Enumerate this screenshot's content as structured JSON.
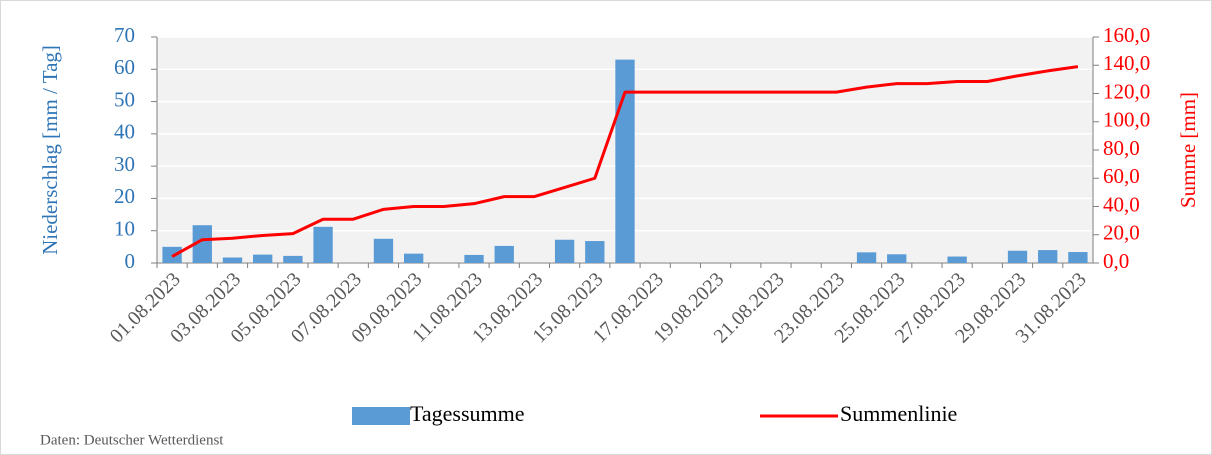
{
  "chart_data": {
    "type": "bar",
    "categories": [
      "01.08.2023",
      null,
      "03.08.2023",
      null,
      "05.08.2023",
      null,
      "07.08.2023",
      null,
      "09.08.2023",
      null,
      "11.08.2023",
      null,
      "13.08.2023",
      null,
      "15.08.2023",
      null,
      "17.08.2023",
      null,
      "19.08.2023",
      null,
      "21.08.2023",
      null,
      "23.08.2023",
      null,
      "25.08.2023",
      null,
      "27.08.2023",
      null,
      "29.08.2023",
      null,
      "31.08.2023"
    ],
    "series": [
      {
        "name": "Tagessumme",
        "type": "bar",
        "color": "#5b9bd5",
        "values": [
          5.0,
          11.7,
          1.7,
          2.6,
          2.2,
          11.2,
          0,
          7.5,
          2.9,
          0,
          2.5,
          5.3,
          0,
          7.2,
          6.8,
          63,
          0,
          0,
          0,
          0,
          0,
          0,
          0,
          3.3,
          2.7,
          0,
          2.0,
          0,
          3.8,
          4.0,
          3.4
        ]
      },
      {
        "name": "Summenlinie",
        "type": "line",
        "axis": "y2",
        "color": "#ff0000",
        "values": [
          4.6,
          16.5,
          17.5,
          19.5,
          20.8,
          31,
          31,
          38,
          40,
          40,
          42,
          47,
          47,
          53.5,
          60,
          121,
          121,
          121,
          121,
          121,
          121,
          121,
          121,
          124.5,
          127,
          127,
          128.5,
          128.5,
          132.5,
          136,
          139
        ]
      }
    ],
    "y_label": "Niederschlag  [mm / Tag]",
    "y2_label": "Summe [mm]",
    "ylim": [
      0,
      70
    ],
    "yticks": [
      0,
      10,
      20,
      30,
      40,
      50,
      60,
      70
    ],
    "y2lim": [
      0,
      160
    ],
    "y2ticks": [
      {
        "value": 0,
        "label": "0,0"
      },
      {
        "value": 20,
        "label": "20,0"
      },
      {
        "value": 40,
        "label": "40,0"
      },
      {
        "value": 60,
        "label": "60,0"
      },
      {
        "value": 80,
        "label": "80,0"
      },
      {
        "value": 100,
        "label": "100,0"
      },
      {
        "value": 120,
        "label": "120,0"
      },
      {
        "value": 140,
        "label": "140,0"
      },
      {
        "value": 160,
        "label": "160,0"
      }
    ],
    "grid": true,
    "legend": "bottom",
    "source": "Daten: Deutscher Wetterdienst"
  }
}
